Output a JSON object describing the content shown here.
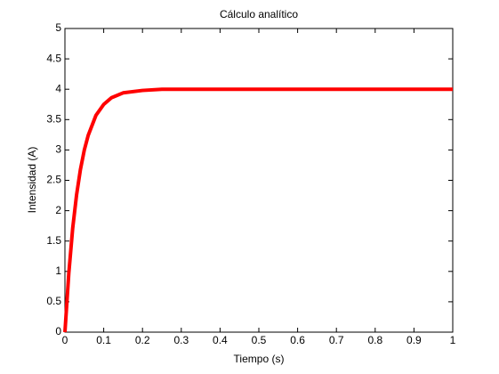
{
  "chart_data": {
    "type": "line",
    "title": "Cálculo analítico",
    "x_label": "Tiempo (s)",
    "y_label": "Intensidad (A)",
    "x": [
      0,
      0.01,
      0.02,
      0.03,
      0.04,
      0.05,
      0.06,
      0.08,
      0.1,
      0.12,
      0.15,
      0.2,
      0.25,
      0.3,
      0.4,
      0.5,
      0.6,
      0.7,
      0.8,
      0.9,
      1
    ],
    "series": [
      {
        "color": "#ff0000",
        "values": [
          0,
          0.97,
          1.71,
          2.26,
          2.68,
          3.0,
          3.24,
          3.57,
          3.75,
          3.86,
          3.94,
          3.98,
          4.0,
          4.0,
          4.0,
          4.0,
          4.0,
          4.0,
          4.0,
          4.0,
          4.0
        ]
      }
    ],
    "xlim": [
      0,
      1
    ],
    "xticks": [
      0,
      0.1,
      0.2,
      0.3,
      0.4,
      0.5,
      0.6,
      0.7,
      0.8,
      0.9,
      1
    ],
    "ylim": [
      0,
      5
    ],
    "yticks": [
      0,
      0.5,
      1,
      1.5,
      2,
      2.5,
      3,
      3.5,
      4,
      4.5,
      5
    ],
    "grid": false
  }
}
